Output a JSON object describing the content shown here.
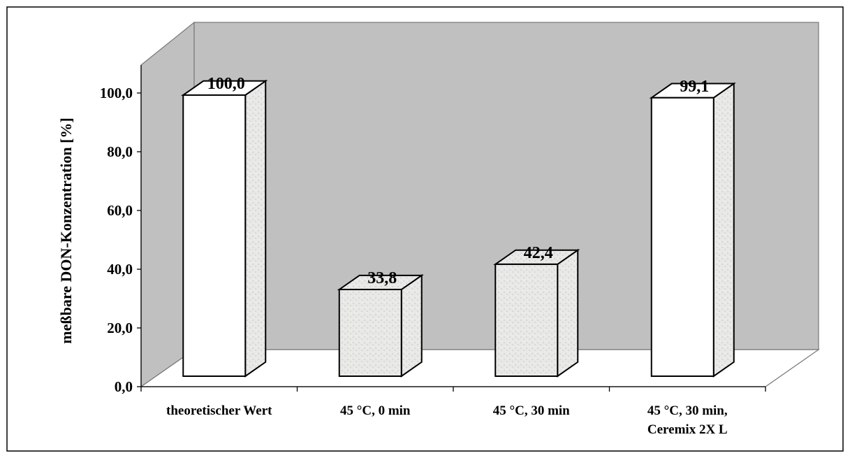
{
  "chart_data": {
    "type": "bar",
    "title": "",
    "xlabel": "",
    "ylabel": "meßbare DON-Konzentration [%]",
    "categories": [
      [
        "theoretischer Wert"
      ],
      [
        "45 °C, 0 min"
      ],
      [
        "45 °C, 30 min"
      ],
      [
        "45 °C, 30 min,",
        "Ceremix 2X L"
      ]
    ],
    "values": [
      100.0,
      33.8,
      42.4,
      99.1
    ],
    "value_labels": [
      "100,0",
      "33,8",
      "42,4",
      "99,1"
    ],
    "bar_fill": [
      "plain",
      "textured",
      "textured",
      "plain"
    ],
    "ylim": [
      0,
      100
    ],
    "yticks": [
      "0,0",
      "20,0",
      "40,0",
      "60,0",
      "80,0",
      "100,0"
    ],
    "grid": false,
    "legend": "none",
    "style": "3d-column",
    "colors": {
      "back_wall": "#c0c0c0",
      "side_wall": "#c0c0c0",
      "floor": "#ffffff",
      "bar_front_plain": "#ffffff",
      "bar_textured": "#e8e8e6",
      "outline": "#000000"
    }
  }
}
